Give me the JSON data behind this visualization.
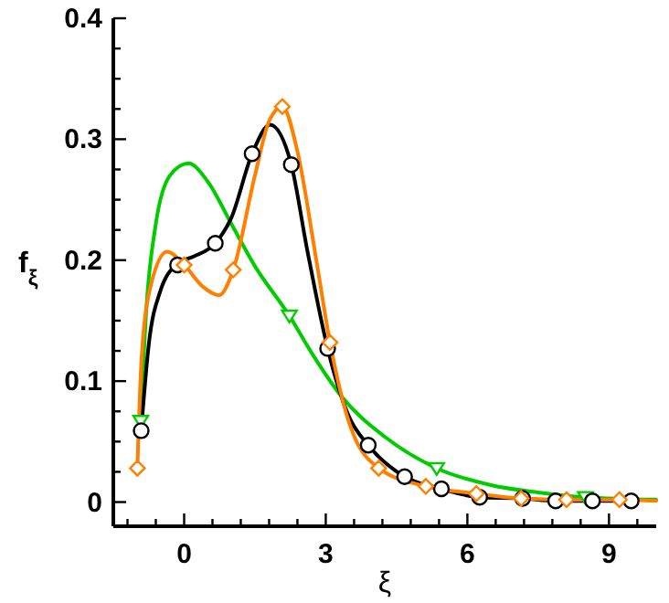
{
  "chart_data": {
    "type": "line",
    "xlabel": "ξ",
    "ylabel": "f$_{ξ}$",
    "xlim": [
      -1.5,
      10
    ],
    "ylim": [
      -0.02,
      0.4
    ],
    "xticks": [
      {
        "value": -1.2,
        "label": null
      },
      {
        "value": -0.6,
        "label": null
      },
      0,
      {
        "value": 0.6,
        "label": null
      },
      {
        "value": 1.2,
        "label": null
      },
      {
        "value": 1.8,
        "label": null
      },
      {
        "value": 2.4,
        "label": null
      },
      3,
      {
        "value": 3.6,
        "label": null
      },
      {
        "value": 4.2,
        "label": null
      },
      {
        "value": 4.8,
        "label": null
      },
      {
        "value": 5.4,
        "label": null
      },
      6,
      {
        "value": 6.6,
        "label": null
      },
      {
        "value": 7.2,
        "label": null
      },
      {
        "value": 7.8,
        "label": null
      },
      {
        "value": 8.4,
        "label": null
      },
      9,
      {
        "value": 9.6,
        "label": null
      }
    ],
    "yticks": [
      0,
      {
        "value": 0.025,
        "label": null
      },
      {
        "value": 0.05,
        "label": null
      },
      {
        "value": 0.075,
        "label": null
      },
      0.1,
      {
        "value": 0.125,
        "label": null
      },
      {
        "value": 0.15,
        "label": null
      },
      {
        "value": 0.175,
        "label": null
      },
      0.2,
      {
        "value": 0.225,
        "label": null
      },
      {
        "value": 0.25,
        "label": null
      },
      {
        "value": 0.275,
        "label": null
      },
      0.3,
      {
        "value": 0.325,
        "label": null
      },
      {
        "value": 0.35,
        "label": null
      },
      {
        "value": 0.375,
        "label": null
      },
      0.4
    ],
    "grid": false,
    "series": [
      {
        "color": "#00cc00",
        "marker": "none",
        "x": [
          -0.92,
          -0.8,
          -0.6,
          -0.3,
          0.09,
          0.5,
          1.0,
          1.5,
          2.23,
          2.69,
          3.34,
          4.25,
          5.35,
          6.5,
          7.5,
          8.5,
          10
        ],
        "values": [
          0.067,
          0.16,
          0.23,
          0.27,
          0.28,
          0.265,
          0.23,
          0.195,
          0.154,
          0.124,
          0.087,
          0.054,
          0.028,
          0.014,
          0.008,
          0.004,
          0.002
        ]
      },
      {
        "color": "#000000",
        "marker": "none",
        "x": [
          -0.91,
          -0.75,
          -0.5,
          -0.14,
          0.2,
          0.66,
          1.0,
          1.44,
          1.82,
          2.27,
          2.6,
          3.04,
          3.5,
          3.9,
          4.67,
          5.45,
          6.26,
          7.17,
          7.87,
          8.65,
          9.47
        ],
        "values": [
          0.059,
          0.13,
          0.175,
          0.197,
          0.203,
          0.214,
          0.235,
          0.288,
          0.312,
          0.279,
          0.21,
          0.127,
          0.07,
          0.047,
          0.021,
          0.011,
          0.004,
          0.003,
          0.001,
          0.001,
          0.001
        ]
      },
      {
        "color": "#ff8000",
        "marker": "none",
        "x": [
          -0.99,
          -0.9,
          -0.7,
          -0.36,
          0,
          0.4,
          0.74,
          1.04,
          1.5,
          1.8,
          2.08,
          2.4,
          2.8,
          3.09,
          3.5,
          4.12,
          5.12,
          6.19,
          7.14,
          8.1,
          9.22,
          10
        ],
        "values": [
          0.028,
          0.12,
          0.18,
          0.207,
          0.196,
          0.178,
          0.171,
          0.192,
          0.27,
          0.315,
          0.327,
          0.29,
          0.2,
          0.132,
          0.065,
          0.028,
          0.013,
          0.007,
          0.003,
          0.002,
          0.002,
          0.001
        ]
      },
      {
        "type": "scatter",
        "color": "#00cc00",
        "marker": "triangle",
        "x": [
          -0.92,
          2.23,
          5.35,
          8.5
        ],
        "values": [
          0.067,
          0.154,
          0.028,
          0.004
        ]
      },
      {
        "type": "scatter",
        "color": "#000000",
        "marker": "circle",
        "x": [
          -0.91,
          -0.14,
          0.66,
          1.44,
          2.27,
          3.04,
          3.9,
          4.67,
          5.45,
          6.26,
          7.17,
          7.87,
          8.65,
          9.47
        ],
        "values": [
          0.059,
          0.196,
          0.214,
          0.288,
          0.279,
          0.127,
          0.047,
          0.021,
          0.011,
          0.004,
          0.003,
          0.001,
          0.001,
          0.001
        ]
      },
      {
        "type": "scatter",
        "color": "#ff8000",
        "marker": "diamond",
        "x": [
          -0.99,
          0,
          1.04,
          2.08,
          3.09,
          4.12,
          5.12,
          6.19,
          7.14,
          8.1,
          9.22
        ],
        "values": [
          0.028,
          0.196,
          0.192,
          0.327,
          0.132,
          0.028,
          0.013,
          0.007,
          0.003,
          0.002,
          0.002
        ]
      }
    ]
  }
}
